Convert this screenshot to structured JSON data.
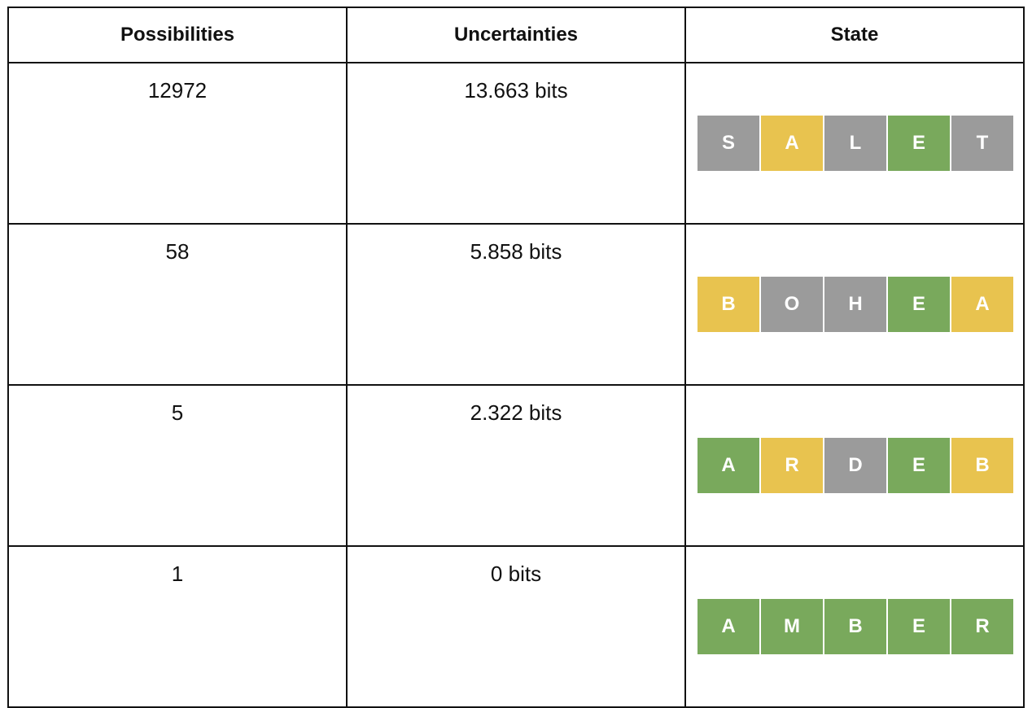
{
  "headers": {
    "possibilities": "Possibilities",
    "uncertainties": "Uncertainties",
    "state": "State"
  },
  "colors": {
    "gray": "#9b9b9b",
    "yellow": "#e8c34f",
    "green": "#79a95c"
  },
  "rows": [
    {
      "possibilities": "12972",
      "uncertainty": "13.663 bits",
      "tiles": [
        {
          "letter": "S",
          "color": "#9b9b9b"
        },
        {
          "letter": "A",
          "color": "#e8c34f"
        },
        {
          "letter": "L",
          "color": "#9b9b9b"
        },
        {
          "letter": "E",
          "color": "#79a95c"
        },
        {
          "letter": "T",
          "color": "#9b9b9b"
        }
      ]
    },
    {
      "possibilities": "58",
      "uncertainty": "5.858 bits",
      "tiles": [
        {
          "letter": "B",
          "color": "#e8c34f"
        },
        {
          "letter": "O",
          "color": "#9b9b9b"
        },
        {
          "letter": "H",
          "color": "#9b9b9b"
        },
        {
          "letter": "E",
          "color": "#79a95c"
        },
        {
          "letter": "A",
          "color": "#e8c34f"
        }
      ]
    },
    {
      "possibilities": "5",
      "uncertainty": "2.322 bits",
      "tiles": [
        {
          "letter": "A",
          "color": "#79a95c"
        },
        {
          "letter": "R",
          "color": "#e8c34f"
        },
        {
          "letter": "D",
          "color": "#9b9b9b"
        },
        {
          "letter": "E",
          "color": "#79a95c"
        },
        {
          "letter": "B",
          "color": "#e8c34f"
        }
      ]
    },
    {
      "possibilities": "1",
      "uncertainty": "0 bits",
      "tiles": [
        {
          "letter": "A",
          "color": "#79a95c"
        },
        {
          "letter": "M",
          "color": "#79a95c"
        },
        {
          "letter": "B",
          "color": "#79a95c"
        },
        {
          "letter": "E",
          "color": "#79a95c"
        },
        {
          "letter": "R",
          "color": "#79a95c"
        }
      ]
    }
  ]
}
